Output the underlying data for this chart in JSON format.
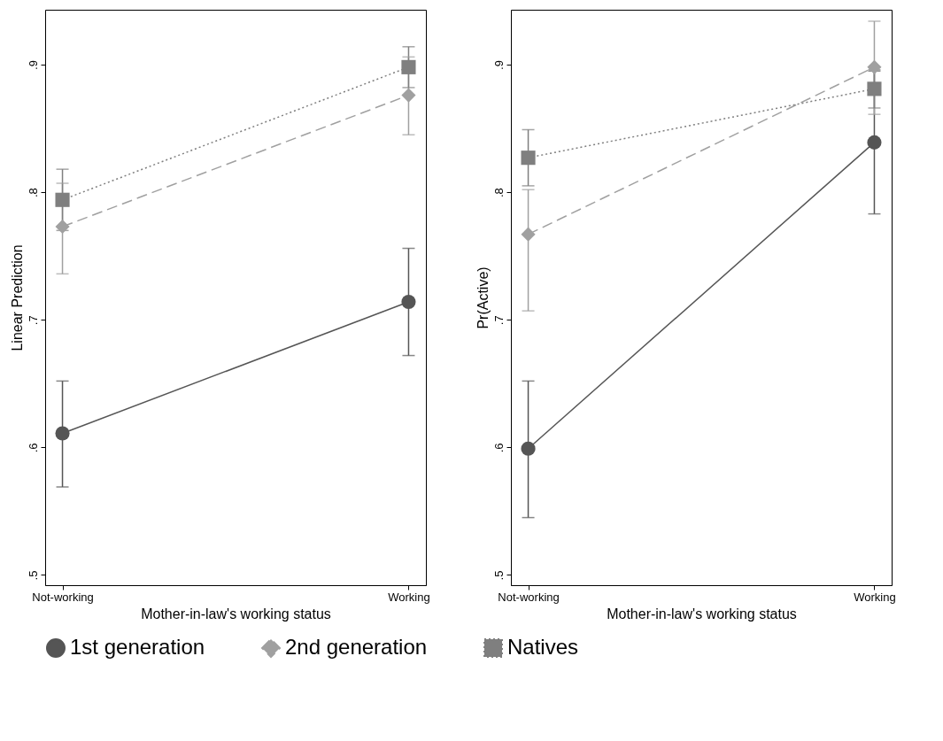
{
  "chart_data": [
    {
      "type": "line",
      "ylabel": "Linear Prediction",
      "xlabel": "Mother-in-law's working status",
      "categories": [
        "Not-working",
        "Working"
      ],
      "ylim": [
        0.492,
        0.943
      ],
      "yticks": [
        {
          "value": 0.5,
          "label": ".5"
        },
        {
          "value": 0.6,
          "label": ".6"
        },
        {
          "value": 0.7,
          "label": ".7"
        },
        {
          "value": 0.8,
          "label": ".8"
        },
        {
          "value": 0.9,
          "label": ".9"
        }
      ],
      "grid": false,
      "legend": "bottom",
      "series": [
        {
          "name": "1st generation",
          "color": "#555555",
          "marker": "circle",
          "line_style": "solid",
          "values": [
            0.611,
            0.714
          ],
          "errors": [
            [
              0.569,
              0.652
            ],
            [
              0.672,
              0.756
            ]
          ]
        },
        {
          "name": "2nd generation",
          "color": "#a0a0a0",
          "marker": "diamond",
          "line_style": "dashed",
          "values": [
            0.773,
            0.876
          ],
          "errors": [
            [
              0.736,
              0.807
            ],
            [
              0.845,
              0.906
            ]
          ]
        },
        {
          "name": "Natives",
          "color": "#7f7f7f",
          "marker": "square",
          "line_style": "dotted",
          "values": [
            0.794,
            0.898
          ],
          "errors": [
            [
              0.77,
              0.818
            ],
            [
              0.882,
              0.914
            ]
          ]
        }
      ]
    },
    {
      "type": "line",
      "ylabel": "Pr(Active)",
      "xlabel": "Mother-in-law's working status",
      "categories": [
        "Not-working",
        "Working"
      ],
      "ylim": [
        0.492,
        0.943
      ],
      "yticks": [
        {
          "value": 0.5,
          "label": ".5"
        },
        {
          "value": 0.6,
          "label": ".6"
        },
        {
          "value": 0.7,
          "label": ".7"
        },
        {
          "value": 0.8,
          "label": ".8"
        },
        {
          "value": 0.9,
          "label": ".9"
        }
      ],
      "grid": false,
      "legend": "bottom",
      "series": [
        {
          "name": "1st generation",
          "color": "#555555",
          "marker": "circle",
          "line_style": "solid",
          "values": [
            0.599,
            0.839
          ],
          "errors": [
            [
              0.545,
              0.652
            ],
            [
              0.783,
              0.895
            ]
          ]
        },
        {
          "name": "2nd generation",
          "color": "#a0a0a0",
          "marker": "diamond",
          "line_style": "dashed",
          "values": [
            0.767,
            0.898
          ],
          "errors": [
            [
              0.707,
              0.802
            ],
            [
              0.861,
              0.934
            ]
          ]
        },
        {
          "name": "Natives",
          "color": "#7f7f7f",
          "marker": "square",
          "line_style": "dotted",
          "values": [
            0.827,
            0.881
          ],
          "errors": [
            [
              0.805,
              0.849
            ],
            [
              0.866,
              0.896
            ]
          ]
        }
      ]
    }
  ]
}
